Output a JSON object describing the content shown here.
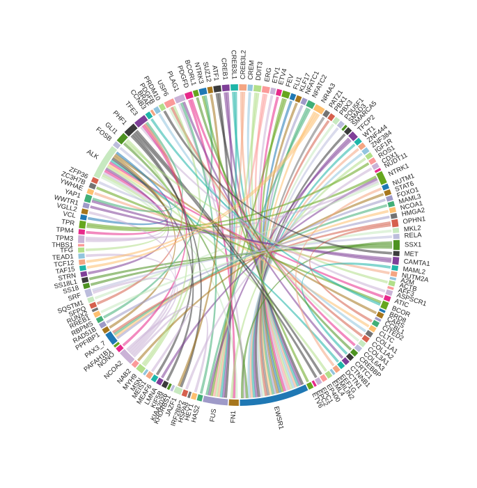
{
  "nodes": [
    {
      "label": "ATF1"
    },
    {
      "label": "CREB1"
    },
    {
      "label": "CREB3L1"
    },
    {
      "label": "CREB3L2"
    },
    {
      "label": "CREM"
    },
    {
      "label": "DDIT3"
    },
    {
      "label": "ERG"
    },
    {
      "label": "ETV1"
    },
    {
      "label": "ETV4"
    },
    {
      "label": "FEV"
    },
    {
      "label": "FLI1"
    },
    {
      "label": "KLF17"
    },
    {
      "label": "NFATC1"
    },
    {
      "label": "NFATC2"
    },
    {
      "label": "NR4A3"
    },
    {
      "label": "PATZ1"
    },
    {
      "label": "PBX1"
    },
    {
      "label": "PBX3"
    },
    {
      "label": "POU5F1"
    },
    {
      "label": "SMAD3"
    },
    {
      "label": "SMARCA5"
    },
    {
      "label": "TFCP2"
    },
    {
      "label": "WT1"
    },
    {
      "label": "ZNF444"
    },
    {
      "label": "ZNF384"
    },
    {
      "label": "IGF1R"
    },
    {
      "label": "ROS1"
    },
    {
      "label": "CDX1"
    },
    {
      "label": "NUDT11"
    },
    {
      "label": "NTRK1"
    },
    {
      "label": "NUTM1"
    },
    {
      "label": "STAT6"
    },
    {
      "label": "FOXO1"
    },
    {
      "label": "MAML3"
    },
    {
      "label": "NCOA1"
    },
    {
      "label": "HMGA2"
    },
    {
      "label": "OPHN1"
    },
    {
      "label": "MKL2"
    },
    {
      "label": "RELA"
    },
    {
      "label": "SSX1"
    },
    {
      "label": "MET"
    },
    {
      "label": "CAMTA1"
    },
    {
      "label": "MAML2"
    },
    {
      "label": "NUTM2A"
    },
    {
      "label": "A2M"
    },
    {
      "label": "ACTB"
    },
    {
      "label": "AFF3"
    },
    {
      "label": "ASPSCR1"
    },
    {
      "label": "ATIC"
    },
    {
      "label": "BCOR"
    },
    {
      "label": "BRD8"
    },
    {
      "label": "CARS"
    },
    {
      "label": "CCBL1"
    },
    {
      "label": "CITED2"
    },
    {
      "label": "CLTC"
    },
    {
      "label": "COL1A1"
    },
    {
      "label": "COL1A2"
    },
    {
      "label": "COL3A1"
    },
    {
      "label": "COL6A3"
    },
    {
      "label": "CREBBP"
    },
    {
      "label": "CRTC1"
    },
    {
      "label": "CTNNB1"
    },
    {
      "label": "DCTN1"
    },
    {
      "label": "EEF1G"
    },
    {
      "label": "EMILIN2"
    },
    {
      "label": "EML4"
    },
    {
      "label": "EP400"
    },
    {
      "label": "EPC1"
    },
    {
      "label": "EPC2"
    },
    {
      "label": "ETV6"
    },
    {
      "label": "EWSR1"
    },
    {
      "label": "FN1"
    },
    {
      "label": "FUS"
    },
    {
      "label": "HAS2"
    },
    {
      "label": "HEY1"
    },
    {
      "label": "HSPA8"
    },
    {
      "label": "IRF2BP2"
    },
    {
      "label": "JAZF1"
    },
    {
      "label": "KHDRBS1"
    },
    {
      "label": "KIAA2026"
    },
    {
      "label": "KIF5B"
    },
    {
      "label": "LMNA"
    },
    {
      "label": "MEAF6"
    },
    {
      "label": "MEIS1"
    },
    {
      "label": "MSN"
    },
    {
      "label": "MYH9"
    },
    {
      "label": "NAB2"
    },
    {
      "label": "NCOA2"
    },
    {
      "label": "NONO"
    },
    {
      "label": "PAFAH1B1"
    },
    {
      "label": "PAX3_7"
    },
    {
      "label": "PPFIBP1"
    },
    {
      "label": "RAD51B"
    },
    {
      "label": "RBPMS"
    },
    {
      "label": "RREB1"
    },
    {
      "label": "RUNX2"
    },
    {
      "label": "SFPQ"
    },
    {
      "label": "SQSTM1"
    },
    {
      "label": "SRF"
    },
    {
      "label": "SS18"
    },
    {
      "label": "SS18L1"
    },
    {
      "label": "STRN"
    },
    {
      "label": "TAF15"
    },
    {
      "label": "TCF12"
    },
    {
      "label": "TEAD1"
    },
    {
      "label": "TFG"
    },
    {
      "label": "THBS1"
    },
    {
      "label": "TPM3"
    },
    {
      "label": "TPM4"
    },
    {
      "label": "TPR"
    },
    {
      "label": "VCL"
    },
    {
      "label": "VGLL2"
    },
    {
      "label": "WWTR1"
    },
    {
      "label": "YAP1"
    },
    {
      "label": "YWHAE"
    },
    {
      "label": "ZC3H7B"
    },
    {
      "label": "ZFP36"
    },
    {
      "label": "ALK"
    },
    {
      "label": "FOSB"
    },
    {
      "label": "GLI1"
    },
    {
      "label": "PHF1"
    },
    {
      "label": "TFE3"
    },
    {
      "label": "CCNB3"
    },
    {
      "label": "BRAF"
    },
    {
      "label": "PDGFB"
    },
    {
      "label": "PRDM10"
    },
    {
      "label": "USP6"
    },
    {
      "label": "PLAG1"
    },
    {
      "label": "PDGFD"
    },
    {
      "label": "BCORL1"
    },
    {
      "label": "NTRK3"
    },
    {
      "label": "SUZ12"
    }
  ],
  "links": [
    [
      70,
      0
    ],
    [
      70,
      1
    ],
    [
      70,
      2
    ],
    [
      70,
      3
    ],
    [
      70,
      4
    ],
    [
      70,
      5
    ],
    [
      70,
      6
    ],
    [
      70,
      7
    ],
    [
      70,
      8
    ],
    [
      70,
      9
    ],
    [
      70,
      10
    ],
    [
      70,
      11
    ],
    [
      70,
      12
    ],
    [
      70,
      13
    ],
    [
      70,
      14
    ],
    [
      70,
      15
    ],
    [
      70,
      16
    ],
    [
      70,
      17
    ],
    [
      70,
      18
    ],
    [
      70,
      20
    ],
    [
      70,
      21
    ],
    [
      70,
      22
    ],
    [
      70,
      23
    ],
    [
      70,
      24
    ],
    [
      70,
      119
    ],
    [
      70,
      127
    ],
    [
      70,
      39
    ],
    [
      72,
      0
    ],
    [
      72,
      1
    ],
    [
      72,
      2
    ],
    [
      72,
      3
    ],
    [
      72,
      5
    ],
    [
      72,
      6
    ],
    [
      72,
      9
    ],
    [
      72,
      21
    ],
    [
      72,
      13
    ],
    [
      71,
      117
    ],
    [
      71,
      128
    ],
    [
      71,
      25
    ],
    [
      99,
      39
    ],
    [
      100,
      39
    ],
    [
      90,
      32
    ],
    [
      90,
      34
    ],
    [
      90,
      33
    ],
    [
      90,
      36
    ],
    [
      117,
      105
    ],
    [
      117,
      107
    ],
    [
      117,
      108
    ],
    [
      117,
      101
    ],
    [
      117,
      65
    ],
    [
      117,
      54
    ],
    [
      117,
      48
    ],
    [
      117,
      62
    ],
    [
      117,
      80
    ],
    [
      117,
      91
    ],
    [
      117,
      51
    ],
    [
      117,
      110
    ],
    [
      29,
      109
    ],
    [
      29,
      81
    ],
    [
      29,
      107
    ],
    [
      29,
      97
    ],
    [
      130,
      69
    ],
    [
      130,
      93
    ],
    [
      55,
      124
    ],
    [
      58,
      128
    ],
    [
      126,
      57
    ],
    [
      126,
      56
    ],
    [
      126,
      85
    ],
    [
      35,
      92
    ],
    [
      127,
      73
    ],
    [
      127,
      61
    ],
    [
      112,
      41
    ],
    [
      113,
      41
    ],
    [
      114,
      43
    ],
    [
      115,
      49
    ],
    [
      49,
      122
    ],
    [
      77,
      120
    ],
    [
      77,
      131
    ],
    [
      82,
      120
    ],
    [
      67,
      120
    ],
    [
      66,
      120
    ],
    [
      86,
      31
    ],
    [
      121,
      47
    ],
    [
      121,
      88
    ],
    [
      121,
      96
    ],
    [
      121,
      113
    ],
    [
      119,
      45
    ],
    [
      119,
      85
    ],
    [
      116,
      118
    ],
    [
      83,
      87
    ],
    [
      98,
      87
    ],
    [
      104,
      87
    ],
    [
      111,
      87
    ],
    [
      74,
      87
    ],
    [
      26,
      109
    ],
    [
      98,
      38
    ],
    [
      60,
      42
    ],
    [
      94,
      37
    ],
    [
      103,
      14
    ],
    [
      102,
      14
    ],
    [
      76,
      27
    ],
    [
      129,
      59
    ],
    [
      125,
      40
    ],
    [
      53,
      36
    ],
    [
      30,
      63
    ]
  ],
  "colors": [
    "#3b3b3b",
    "#7f3f98",
    "#1fb5a8",
    "#f4a582",
    "#92c5de",
    "#b2df8a",
    "#fb9a99",
    "#cab2d6",
    "#e7298a",
    "#66a61e",
    "#1f78b4",
    "#a6761d",
    "#9e9ac8",
    "#41ae76",
    "#fdbf6f",
    "#737373",
    "#d6604d",
    "#c7e9c0",
    "#bcbddc",
    "#4d9221"
  ]
}
